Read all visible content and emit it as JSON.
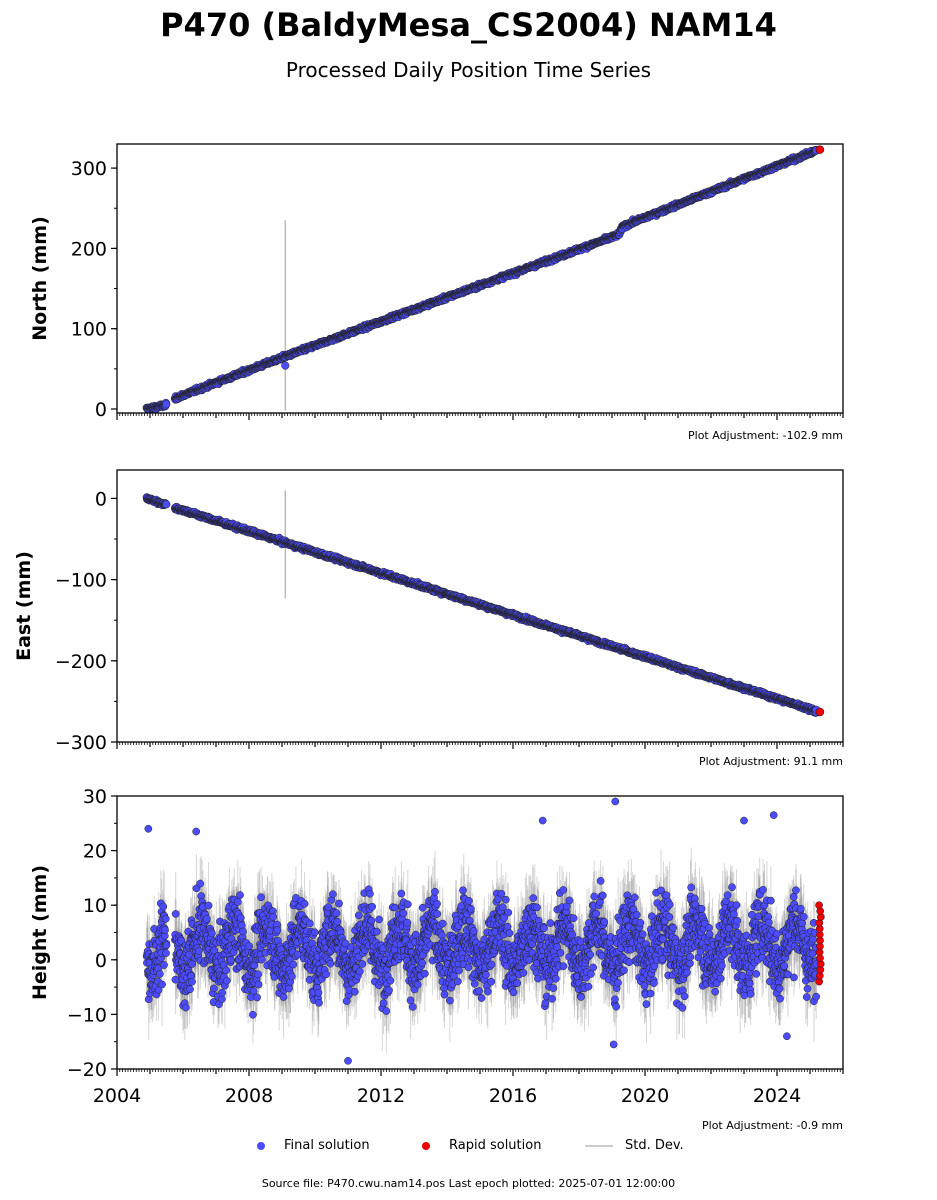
{
  "title": "P470 (BaldyMesa_CS2004) NAM14",
  "subtitle": "Processed Daily Position Time Series",
  "colors": {
    "final": "#4b4bff",
    "rapid": "#ee0000",
    "stddev": "#bbbbbb",
    "marker_edge": "#222222"
  },
  "chart_data": [
    {
      "type": "scatter",
      "panel": "north",
      "ylabel": "North (mm)",
      "xlim": [
        2004,
        2026
      ],
      "ylim": [
        -5,
        330
      ],
      "yticks": [
        0,
        100,
        200,
        300
      ],
      "yticklabels": [
        "0",
        "100",
        "200",
        "300"
      ],
      "xticks": [
        2004,
        2008,
        2012,
        2016,
        2020,
        2024
      ],
      "xticklabels": [],
      "adjustment": "Plot Adjustment: -102.9 mm",
      "final_trend": {
        "x": [
          2004.9,
          2005.5,
          2005.8,
          2009.0,
          2019.2,
          2019.35,
          2025.2
        ],
        "y": [
          0,
          5,
          14,
          64,
          217,
          228,
          322
        ]
      },
      "rapid_end": {
        "x": 2025.3,
        "y": 323
      },
      "gap": [
        2005.5,
        2005.75
      ],
      "outliers": [
        {
          "x": 2009.1,
          "y": 54
        }
      ],
      "stddev_spike": {
        "x": 2009.1,
        "y_low": -2,
        "y_high": 235
      }
    },
    {
      "type": "scatter",
      "panel": "east",
      "ylabel": "East (mm)",
      "xlim": [
        2004,
        2026
      ],
      "ylim": [
        -300,
        35
      ],
      "yticks": [
        0,
        -100,
        -200,
        -300
      ],
      "yticklabels": [
        "0",
        "−100",
        "−200",
        "−300"
      ],
      "xticks": [
        2004,
        2008,
        2012,
        2016,
        2020,
        2024
      ],
      "xticklabels": [],
      "adjustment": "Plot Adjustment: 91.1 mm",
      "final_trend": {
        "x": [
          2004.9,
          2005.5,
          2005.8,
          2025.2
        ],
        "y": [
          0,
          -8,
          -12,
          -262
        ]
      },
      "rapid_end": {
        "x": 2025.3,
        "y": -263
      },
      "gap": [
        2005.5,
        2005.75
      ],
      "outliers": [],
      "stddev_spike": {
        "x": 2009.1,
        "y_low": -123,
        "y_high": 10
      }
    },
    {
      "type": "scatter",
      "panel": "height",
      "ylabel": "Height (mm)",
      "xlim": [
        2004,
        2026
      ],
      "ylim": [
        -20,
        30
      ],
      "yticks": [
        -20,
        -10,
        0,
        10,
        20,
        30
      ],
      "yticklabels": [
        "−20",
        "−10",
        "0",
        "10",
        "20",
        "30"
      ],
      "xticks": [
        2004,
        2008,
        2012,
        2016,
        2020,
        2024
      ],
      "xticklabels": [
        "2004",
        "2008",
        "2012",
        "2016",
        "2020",
        "2024"
      ],
      "adjustment": "Plot Adjustment: -0.9 mm",
      "final_trend": {
        "x": [
          2004.9,
          2025.2
        ],
        "y": [
          2,
          3
        ]
      },
      "seasonal_amplitude": 4,
      "noise": 4.5,
      "rapid_end": {
        "x": 2025.3,
        "y": 3
      },
      "rapid_range": [
        -4,
        10
      ],
      "gap": [
        2005.5,
        2005.75
      ],
      "outliers": [
        {
          "x": 2004.95,
          "y": 24
        },
        {
          "x": 2006.4,
          "y": 23.5
        },
        {
          "x": 2011.0,
          "y": -18.5
        },
        {
          "x": 2016.9,
          "y": 25.5
        },
        {
          "x": 2019.1,
          "y": 29
        },
        {
          "x": 2019.05,
          "y": -15.5
        },
        {
          "x": 2023.0,
          "y": 25.5
        },
        {
          "x": 2023.9,
          "y": 26.5
        },
        {
          "x": 2024.3,
          "y": -14
        }
      ]
    }
  ],
  "legend": {
    "final": "Final solution",
    "rapid": "Rapid solution",
    "stddev": "Std. Dev."
  },
  "footer": "Source file: P470.cwu.nam14.pos  Last epoch plotted: 2025-07-01 12:00:00"
}
